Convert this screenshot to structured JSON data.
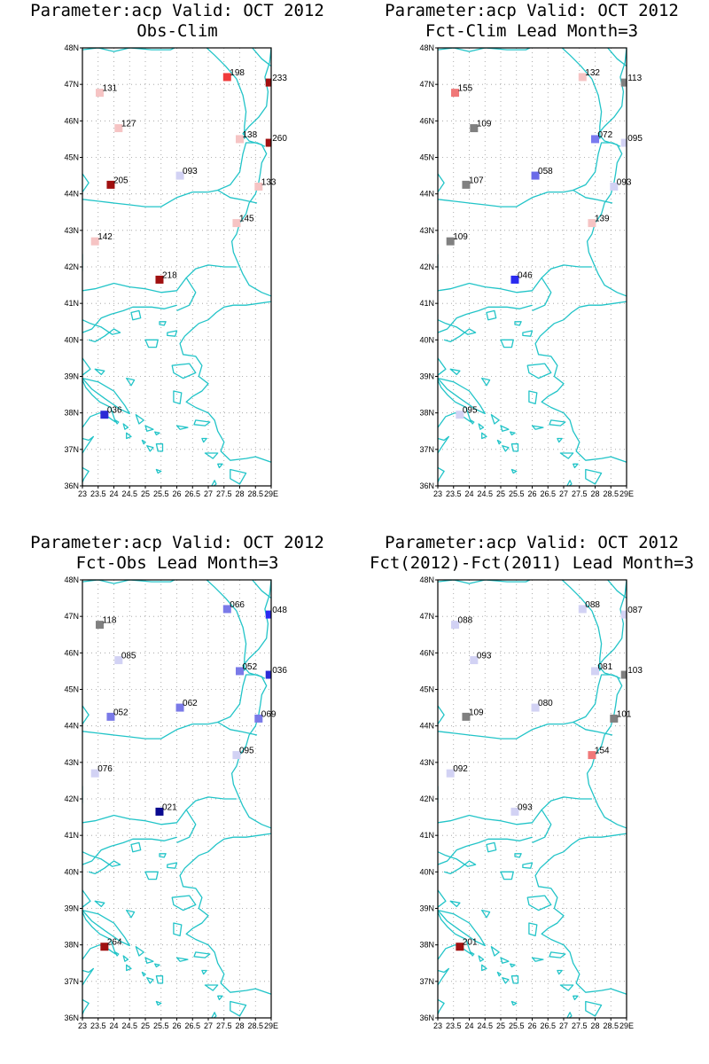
{
  "lat_axis": {
    "min": 36,
    "max": 48,
    "labels": [
      "36N",
      "37N",
      "38N",
      "39N",
      "40N",
      "41N",
      "42N",
      "43N",
      "44N",
      "45N",
      "46N",
      "47N",
      "48N"
    ]
  },
  "lon_axis": {
    "min": 23,
    "max": 29,
    "labels": [
      "23",
      "23.5",
      "24",
      "24.5",
      "25",
      "25.5",
      "26",
      "26.5",
      "27",
      "27.5",
      "28",
      "28.5",
      "29E"
    ]
  },
  "panels": [
    {
      "title1": "Parameter:acp Valid: OCT 2012",
      "title2": "Obs-Clim",
      "stations": [
        {
          "lon": 23.55,
          "lat": 46.77,
          "label": "131",
          "color": "#f6c4c4"
        },
        {
          "lon": 24.15,
          "lat": 45.8,
          "label": "127",
          "color": "#f6c4c4"
        },
        {
          "lon": 23.9,
          "lat": 44.25,
          "label": "205",
          "color": "#a01010"
        },
        {
          "lon": 23.4,
          "lat": 42.7,
          "label": "142",
          "color": "#f6c4c4"
        },
        {
          "lon": 25.45,
          "lat": 41.65,
          "label": "218",
          "color": "#a01010"
        },
        {
          "lon": 23.7,
          "lat": 37.95,
          "label": "036",
          "color": "#2a2ad6"
        },
        {
          "lon": 26.1,
          "lat": 44.5,
          "label": "093",
          "color": "#d2d2f4"
        },
        {
          "lon": 27.6,
          "lat": 47.2,
          "label": "198",
          "color": "#f03c3c"
        },
        {
          "lon": 28.0,
          "lat": 45.5,
          "label": "138",
          "color": "#f6c4c4"
        },
        {
          "lon": 28.95,
          "lat": 47.05,
          "label": "233",
          "color": "#a01010"
        },
        {
          "lon": 28.95,
          "lat": 45.4,
          "label": "260",
          "color": "#a01010"
        },
        {
          "lon": 28.6,
          "lat": 44.2,
          "label": "133",
          "color": "#f6c4c4"
        },
        {
          "lon": 27.9,
          "lat": 43.2,
          "label": "145",
          "color": "#f6c4c4"
        }
      ]
    },
    {
      "title1": "Parameter:acp Valid: OCT 2012",
      "title2": "Fct-Clim Lead Month=3",
      "stations": [
        {
          "lon": 23.55,
          "lat": 46.77,
          "label": "155",
          "color": "#f07878"
        },
        {
          "lon": 24.15,
          "lat": 45.8,
          "label": "109",
          "color": "#808080"
        },
        {
          "lon": 23.9,
          "lat": 44.25,
          "label": "107",
          "color": "#808080"
        },
        {
          "lon": 23.4,
          "lat": 42.7,
          "label": "109",
          "color": "#808080"
        },
        {
          "lon": 25.45,
          "lat": 41.65,
          "label": "046",
          "color": "#2a2af0"
        },
        {
          "lon": 23.7,
          "lat": 37.95,
          "label": "095",
          "color": "#d2d2f4"
        },
        {
          "lon": 26.1,
          "lat": 44.5,
          "label": "058",
          "color": "#6a6ae8"
        },
        {
          "lon": 27.6,
          "lat": 47.2,
          "label": "132",
          "color": "#f6c4c4"
        },
        {
          "lon": 28.0,
          "lat": 45.5,
          "label": "072",
          "color": "#7a7af0"
        },
        {
          "lon": 28.95,
          "lat": 47.05,
          "label": "113",
          "color": "#808080"
        },
        {
          "lon": 28.95,
          "lat": 45.4,
          "label": "095",
          "color": "#d2d2f4"
        },
        {
          "lon": 28.6,
          "lat": 44.2,
          "label": "093",
          "color": "#d2d2f4"
        },
        {
          "lon": 27.9,
          "lat": 43.2,
          "label": "139",
          "color": "#f6c4c4"
        }
      ]
    },
    {
      "title1": "Parameter:acp Valid: OCT 2012",
      "title2": "Fct-Obs Lead Month=3",
      "stations": [
        {
          "lon": 23.55,
          "lat": 46.77,
          "label": "118",
          "color": "#808080"
        },
        {
          "lon": 24.15,
          "lat": 45.8,
          "label": "085",
          "color": "#d2d2f4"
        },
        {
          "lon": 23.9,
          "lat": 44.25,
          "label": "052",
          "color": "#7a7ae8"
        },
        {
          "lon": 23.4,
          "lat": 42.7,
          "label": "076",
          "color": "#d2d2f4"
        },
        {
          "lon": 25.45,
          "lat": 41.65,
          "label": "021",
          "color": "#0a0a90"
        },
        {
          "lon": 23.7,
          "lat": 37.95,
          "label": "264",
          "color": "#a01010"
        },
        {
          "lon": 26.1,
          "lat": 44.5,
          "label": "062",
          "color": "#7a7ae8"
        },
        {
          "lon": 27.6,
          "lat": 47.2,
          "label": "066",
          "color": "#7a7ae8"
        },
        {
          "lon": 28.0,
          "lat": 45.5,
          "label": "052",
          "color": "#7a7ae8"
        },
        {
          "lon": 28.95,
          "lat": 47.05,
          "label": "048",
          "color": "#2a2af0"
        },
        {
          "lon": 28.95,
          "lat": 45.4,
          "label": "036",
          "color": "#2a2ad6"
        },
        {
          "lon": 28.6,
          "lat": 44.2,
          "label": "069",
          "color": "#7a7ae8"
        },
        {
          "lon": 27.9,
          "lat": 43.2,
          "label": "095",
          "color": "#d2d2f4"
        }
      ]
    },
    {
      "title1": "Parameter:acp Valid: OCT 2012",
      "title2": "Fct(2012)-Fct(2011) Lead Month=3",
      "stations": [
        {
          "lon": 23.55,
          "lat": 46.77,
          "label": "088",
          "color": "#d2d2f4"
        },
        {
          "lon": 24.15,
          "lat": 45.8,
          "label": "093",
          "color": "#d2d2f4"
        },
        {
          "lon": 23.9,
          "lat": 44.25,
          "label": "109",
          "color": "#808080"
        },
        {
          "lon": 23.4,
          "lat": 42.7,
          "label": "092",
          "color": "#d2d2f4"
        },
        {
          "lon": 25.45,
          "lat": 41.65,
          "label": "093",
          "color": "#d2d2f4"
        },
        {
          "lon": 23.7,
          "lat": 37.95,
          "label": "201",
          "color": "#a01010"
        },
        {
          "lon": 26.1,
          "lat": 44.5,
          "label": "080",
          "color": "#d2d2f4"
        },
        {
          "lon": 27.6,
          "lat": 47.2,
          "label": "088",
          "color": "#d2d2f4"
        },
        {
          "lon": 28.0,
          "lat": 45.5,
          "label": "081",
          "color": "#d2d2f4"
        },
        {
          "lon": 28.95,
          "lat": 47.05,
          "label": "087",
          "color": "#d2d2f4"
        },
        {
          "lon": 28.95,
          "lat": 45.4,
          "label": "103",
          "color": "#808080"
        },
        {
          "lon": 28.6,
          "lat": 44.2,
          "label": "101",
          "color": "#808080"
        },
        {
          "lon": 27.9,
          "lat": 43.2,
          "label": "154",
          "color": "#f07878"
        }
      ]
    }
  ]
}
